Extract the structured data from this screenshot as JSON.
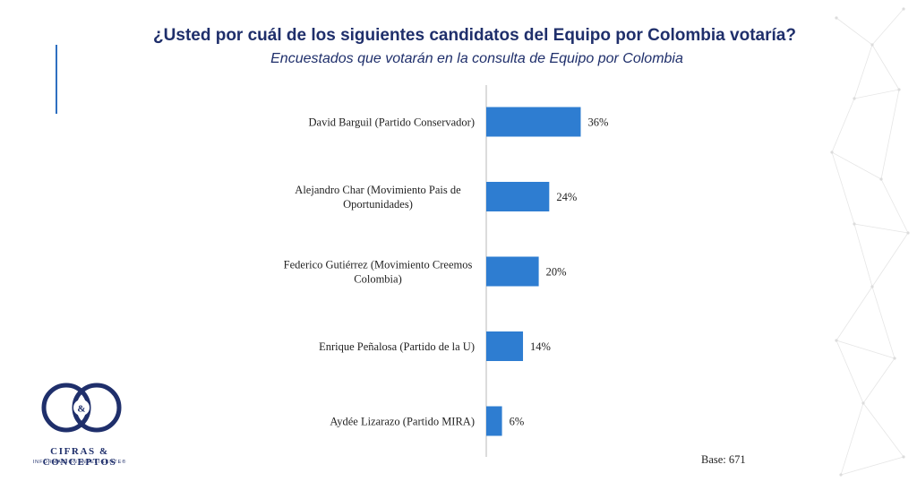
{
  "slide": {
    "title": "¿Usted por cuál de los siguientes candidatos del Equipo por Colombia votaría?",
    "subtitle": "Encuestados que votarán en la consulta de Equipo por Colombia",
    "base_note": "Base: 671"
  },
  "logo": {
    "monogram": "&",
    "name": "CIFRAS & CONCEPTOS",
    "tagline": "INFORMACIÓN INTELIGENTE®"
  },
  "colors": {
    "bar": "#2e7dd1",
    "title": "#1f2f6b",
    "axis": "#b8b8b8",
    "accent_line": "#2e6fc0"
  },
  "chart_data": {
    "type": "bar",
    "orientation": "horizontal",
    "categories": [
      [
        "David Barguil (Partido Conservador)"
      ],
      [
        "Alejandro Char (Movimiento Pais de",
        "Oportunidades)"
      ],
      [
        "Federico Gutiérrez (Movimiento Creemos",
        "Colombia)"
      ],
      [
        "Enrique Peñalosa (Partido de la U)"
      ],
      [
        "Aydée Lizarazo (Partido MIRA)"
      ]
    ],
    "values": [
      36,
      24,
      20,
      14,
      6
    ],
    "value_labels": [
      "36%",
      "24%",
      "20%",
      "14%",
      "6%"
    ],
    "unit": "%",
    "xlim": [
      0,
      100
    ],
    "grid": false,
    "legend": "none"
  }
}
